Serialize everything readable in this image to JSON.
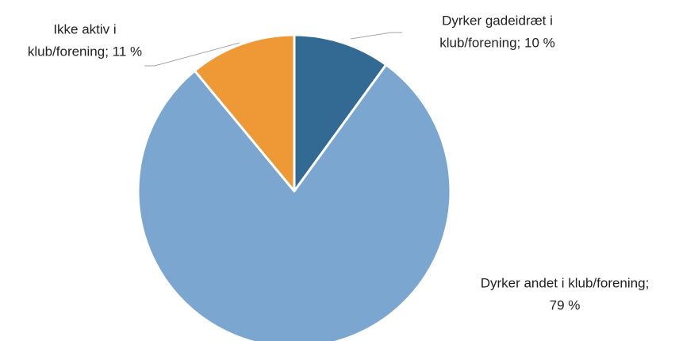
{
  "chart_data": {
    "type": "pie",
    "values": [
      10,
      79,
      11
    ],
    "value_labels": [
      [
        "Dyrker gadeidræt i",
        "klub/forening; 10 %"
      ],
      [
        "Dyrker andet i klub/forening;",
        "79 %"
      ],
      [
        "Ikke aktiv i",
        "klub/forening; 11 %"
      ]
    ],
    "colors": [
      "#336a94",
      "#7aa6d0",
      "#ee9836"
    ]
  }
}
